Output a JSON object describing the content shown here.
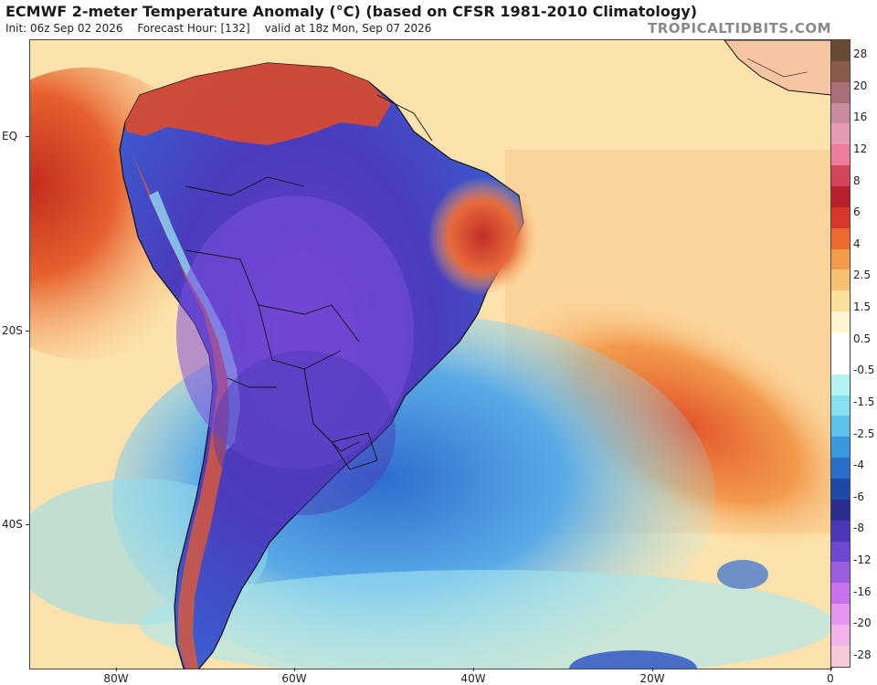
{
  "header": {
    "title": "ECMWF 2-meter Temperature Anomaly (°C) (based on CFSR 1981-2010 Climatology)",
    "init": "Init: 06z Sep 02 2026",
    "forecast_hour": "Forecast Hour: [132]",
    "valid": "valid at 18z Mon, Sep 07 2026",
    "brand": "TROPICALTIDBITS.COM"
  },
  "axes": {
    "lat_labels": [
      "EQ",
      "20S",
      "40S"
    ],
    "lon_labels": [
      "80W",
      "60W",
      "40W",
      "20W",
      "0"
    ]
  },
  "colorbar": {
    "labels": [
      "28",
      "20",
      "16",
      "12",
      "8",
      "6",
      "4",
      "2.5",
      "1.5",
      "0.5",
      "-0.5",
      "-1.5",
      "-2.5",
      "-4",
      "-6",
      "-8",
      "-12",
      "-16",
      "-20",
      "-28"
    ],
    "colors": [
      "#6b4a35",
      "#8a5a4a",
      "#a9707a",
      "#c98aa0",
      "#e79ab5",
      "#ee7d99",
      "#d2455c",
      "#b8202c",
      "#d8382a",
      "#ec6a2e",
      "#f49a4a",
      "#f8c070",
      "#fbe09a",
      "#fff5d0",
      "#ffffff",
      "#ffffff",
      "#b5f3f2",
      "#86e0ef",
      "#5ac2ec",
      "#3a98e0",
      "#2a6fca",
      "#1d4aa8",
      "#2a2d8c",
      "#4d38b8",
      "#6f48d2",
      "#9b5ee0",
      "#c872ee",
      "#e596f0",
      "#f0b2e8",
      "#f5c9d8"
    ]
  },
  "colors": {
    "ocean_warm": "#fde8b4",
    "land_cold": "#6c4bd8",
    "land_deep_cold": "#4b3cc4",
    "ocean_cold": "#7ad2ee",
    "ocean_deep_cold": "#3f7fd6",
    "warm_anomaly": "#e2522b",
    "border_color": "#111111"
  }
}
